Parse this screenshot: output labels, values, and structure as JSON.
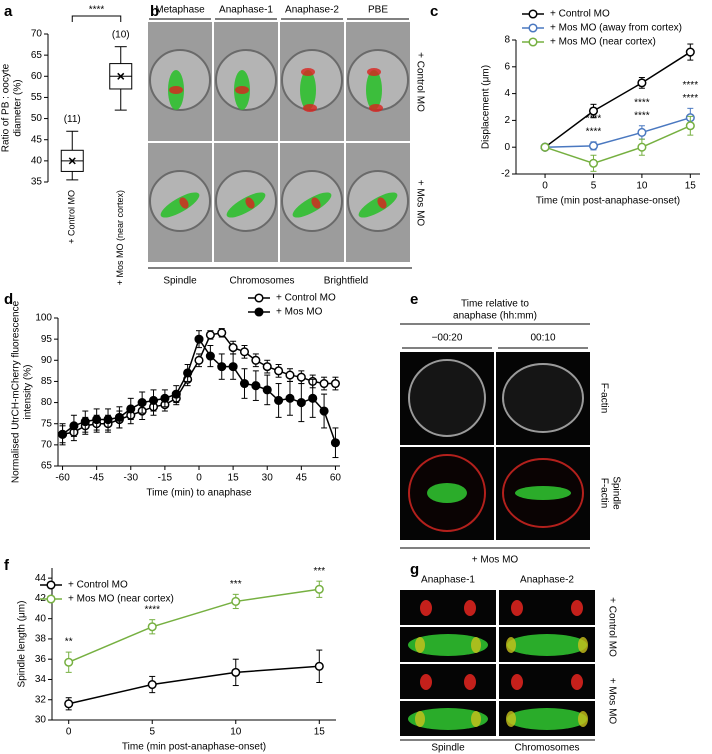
{
  "chart_data": [
    {
      "panel": "a",
      "type": "box",
      "ylabel": [
        "Ratio of PB : oocyte",
        "diameter (%)"
      ],
      "categories": [
        "+ Control MO",
        "+ Mos MO (near cortex)"
      ],
      "boxes": [
        {
          "min": 35.5,
          "q1": 37.5,
          "median": 40,
          "q3": 42.5,
          "max": 47,
          "mean": 40
        },
        {
          "min": 52,
          "q1": 57,
          "median": 60,
          "q3": 63,
          "max": 67,
          "mean": 60
        }
      ],
      "n_labels": [
        "(11)",
        "(10)"
      ],
      "significance": "****",
      "color": "#000000",
      "ylim": [
        35,
        70
      ],
      "yticks": [
        35,
        40,
        45,
        50,
        55,
        60,
        65,
        70
      ]
    },
    {
      "panel": "c",
      "type": "line",
      "xlabel": "Time (min post-anaphase-onset)",
      "ylabel": "Displacement (μm)",
      "x": [
        0,
        5,
        10,
        15
      ],
      "xlim": [
        -3,
        16
      ],
      "xticks": [
        0,
        5,
        10,
        15
      ],
      "ylim": [
        -2,
        8
      ],
      "yticks": [
        -2,
        0,
        2,
        4,
        6,
        8
      ],
      "legend": "upper left",
      "series": [
        {
          "name": "+ Control MO",
          "color": "#000000",
          "marker": "open",
          "values": [
            0,
            2.7,
            4.8,
            7.1
          ],
          "errors": [
            0,
            0.5,
            0.4,
            0.6
          ]
        },
        {
          "name": "+ Mos MO (away from cortex)",
          "color": "#4a78c0",
          "marker": "open",
          "values": [
            0,
            0.1,
            1.1,
            2.2
          ],
          "errors": [
            0,
            0.3,
            0.5,
            0.7
          ]
        },
        {
          "name": "+ Mos MO (near cortex)",
          "color": "#76b041",
          "marker": "open",
          "values": [
            0,
            -1.2,
            0,
            1.6
          ],
          "errors": [
            0,
            0.6,
            0.6,
            0.7
          ]
        }
      ],
      "annotations": [
        {
          "text": "****",
          "x": 5,
          "series": 1
        },
        {
          "text": "****",
          "x": 5,
          "series": 2
        },
        {
          "text": "****",
          "x": 10,
          "series": 1
        },
        {
          "text": "****",
          "x": 10,
          "series": 2
        },
        {
          "text": "****",
          "x": 15,
          "series": 1
        },
        {
          "text": "****",
          "x": 15,
          "series": 2
        }
      ]
    },
    {
      "panel": "d",
      "type": "line",
      "xlabel": "Time (min) to anaphase",
      "ylabel": [
        "Normalised UtrCH-mCherry fluorescence",
        "intensity (%)"
      ],
      "x": [
        -60,
        -55,
        -50,
        -45,
        -40,
        -35,
        -30,
        -25,
        -20,
        -15,
        -10,
        -5,
        0,
        5,
        10,
        15,
        20,
        25,
        30,
        35,
        40,
        45,
        50,
        55,
        60
      ],
      "xlim": [
        -62,
        62
      ],
      "xticks": [
        -60,
        -45,
        -30,
        -15,
        0,
        15,
        30,
        45,
        60
      ],
      "ylim": [
        65,
        100
      ],
      "yticks": [
        65,
        70,
        75,
        80,
        85,
        90,
        95,
        100
      ],
      "legend": "upper right",
      "series": [
        {
          "name": "+ Control MO",
          "color": "#000000",
          "marker": "open",
          "values": [
            72.5,
            73,
            74.5,
            75,
            75,
            76,
            77,
            78,
            79,
            79.5,
            81,
            85.5,
            90,
            96,
            96.5,
            93,
            92,
            90,
            88.5,
            87.5,
            86.5,
            86,
            85,
            84.5,
            84.5
          ],
          "errors": [
            2,
            2,
            2,
            2,
            2,
            2,
            2,
            2,
            2,
            1.5,
            1.5,
            1.5,
            1.5,
            1,
            1,
            1.5,
            1.5,
            1.5,
            1.5,
            1.5,
            1.5,
            1.5,
            1.5,
            1.5,
            1.5
          ]
        },
        {
          "name": "+ Mos MO",
          "color": "#000000",
          "marker": "filled",
          "values": [
            72.5,
            74.5,
            75.5,
            76,
            76,
            76.5,
            78.5,
            80,
            80.5,
            81,
            82,
            87,
            95,
            91,
            88.5,
            88.5,
            84.5,
            84,
            83,
            80.5,
            81,
            80,
            81,
            78,
            70.5
          ],
          "errors": [
            2.5,
            2.5,
            2.5,
            2.5,
            2.5,
            2.5,
            2.5,
            2.5,
            2.5,
            2,
            2,
            2,
            2,
            2.5,
            3,
            3,
            3.5,
            3.5,
            3.5,
            4,
            4,
            4.5,
            4.5,
            4,
            3.5
          ]
        }
      ]
    },
    {
      "panel": "f",
      "type": "line",
      "xlabel": "Time (min post-anaphase-onset)",
      "ylabel": "Spindle length (μm)",
      "x": [
        0,
        5,
        10,
        15
      ],
      "xlim": [
        -1,
        16
      ],
      "xticks": [
        0,
        5,
        10,
        15
      ],
      "ylim": [
        30,
        45
      ],
      "yticks": [
        30,
        32,
        34,
        36,
        38,
        40,
        42,
        44
      ],
      "legend": "upper left",
      "series": [
        {
          "name": "+ Control MO",
          "color": "#000000",
          "marker": "open",
          "values": [
            31.6,
            33.5,
            34.7,
            35.3
          ],
          "errors": [
            0.6,
            0.8,
            1.3,
            1.6
          ]
        },
        {
          "name": "+ Mos MO (near cortex)",
          "color": "#76b041",
          "marker": "open",
          "values": [
            35.7,
            39.2,
            41.7,
            42.9
          ],
          "errors": [
            1,
            0.7,
            0.7,
            0.8
          ]
        }
      ],
      "annotations": [
        {
          "text": "**",
          "x": 0,
          "series": 1
        },
        {
          "text": "****",
          "x": 5,
          "series": 1
        },
        {
          "text": "***",
          "x": 10,
          "series": 1
        },
        {
          "text": "***",
          "x": 15,
          "series": 1
        }
      ]
    }
  ],
  "images": [
    {
      "panel": "b",
      "columns": [
        "Metaphase",
        "Anaphase-1",
        "Anaphase-2",
        "PBE"
      ],
      "rows": [
        "+ Control MO",
        "+ Mos MO"
      ],
      "channels": [
        {
          "name": "Spindle",
          "color": "#2fbf2f"
        },
        {
          "name": "Chromosomes",
          "color": "#d9231e"
        },
        {
          "name": "Brightfield",
          "color": "#000000"
        }
      ]
    },
    {
      "panel": "e",
      "header": [
        "Time relative to",
        "anaphase (hh:mm)"
      ],
      "columns": [
        "−00:20",
        "00:10"
      ],
      "rows": [
        [
          {
            "name": "F-actin",
            "color": "#000000"
          }
        ],
        [
          {
            "name": "F-actin",
            "color": "#d9231e"
          },
          {
            "name": "Spindle",
            "color": "#2fbf2f"
          }
        ]
      ],
      "condition": "+ Mos MO"
    },
    {
      "panel": "g",
      "columns": [
        "Anaphase-1",
        "Anaphase-2"
      ],
      "rows": [
        "+ Control MO",
        "+ Mos MO"
      ],
      "channels": [
        {
          "name": "Spindle",
          "color": "#2fbf2f"
        },
        {
          "name": "Chromosomes",
          "color": "#d9231e"
        }
      ]
    }
  ]
}
